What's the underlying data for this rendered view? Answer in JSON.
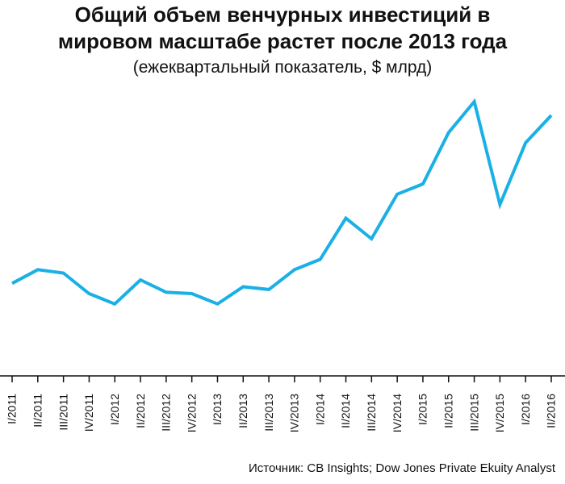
{
  "title_line1": "Общий объем венчурных инвестиций в",
  "title_line2": "мировом масштабе растет после 2013 года",
  "subtitle": "(ежеквартальный показатель, $ млрд)",
  "source": "Источник: CB Insights; Dow Jones Private Ekuity Analyst",
  "colors": {
    "line": "#1ab0e6",
    "axis": "#111111"
  },
  "chart_data": {
    "type": "line",
    "title": "Общий объем венчурных инвестиций в мировом масштабе растет после 2013 года",
    "subtitle": "(ежеквартальный показатель, $ млрд)",
    "xlabel": "",
    "ylabel": "",
    "grid": false,
    "ylim": [
      0,
      40
    ],
    "categories": [
      "I/2011",
      "II/2011",
      "III/2011",
      "IV/2011",
      "I/2012",
      "II/2012",
      "III/2012",
      "IV/2012",
      "I/2013",
      "II/2013",
      "III/2013",
      "IV/2013",
      "I/2014",
      "II/2014",
      "III/2014",
      "IV/2014",
      "I/2015",
      "II/2015",
      "III/2015",
      "IV/2015",
      "I/2016",
      "II/2016"
    ],
    "series": [
      {
        "values": [
          13.5,
          15.5,
          15.0,
          12.0,
          10.5,
          14.0,
          12.2,
          12.0,
          10.5,
          13.0,
          12.6,
          15.5,
          17.0,
          23.0,
          20.0,
          26.5,
          28.0,
          35.5,
          40.0,
          25.0,
          34.0,
          38.0
        ]
      }
    ]
  }
}
